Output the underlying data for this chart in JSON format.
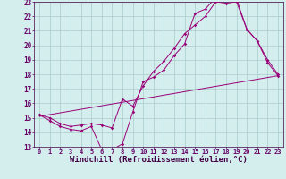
{
  "bg_color": "#d4eeee",
  "line_color": "#990077",
  "grid_color": "#aacccc",
  "xlabel": "Windchill (Refroidissement éolien,°C)",
  "xlabel_fontsize": 6.5,
  "tick_fontsize": 5.5,
  "xlim": [
    -0.5,
    23.5
  ],
  "ylim": [
    13,
    23
  ],
  "yticks": [
    13,
    14,
    15,
    16,
    17,
    18,
    19,
    20,
    21,
    22,
    23
  ],
  "xticks": [
    0,
    1,
    2,
    3,
    4,
    5,
    6,
    7,
    8,
    9,
    10,
    11,
    12,
    13,
    14,
    15,
    16,
    17,
    18,
    19,
    20,
    21,
    22,
    23
  ],
  "line1_x": [
    0,
    1,
    2,
    3,
    4,
    5,
    6,
    7,
    8,
    9,
    10,
    11,
    12,
    13,
    14,
    15,
    16,
    17,
    18,
    19,
    20,
    21,
    22,
    23
  ],
  "line1_y": [
    15.2,
    14.8,
    14.4,
    14.2,
    14.1,
    14.4,
    12.8,
    12.8,
    13.2,
    15.4,
    17.5,
    17.8,
    18.3,
    19.3,
    20.1,
    22.2,
    22.5,
    23.3,
    23.2,
    23.2,
    21.1,
    20.3,
    18.8,
    17.9
  ],
  "line2_x": [
    0,
    1,
    2,
    3,
    4,
    5,
    6,
    7,
    8,
    9,
    10,
    11,
    12,
    13,
    14,
    15,
    16,
    17,
    18,
    19,
    20,
    21,
    22,
    23
  ],
  "line2_y": [
    15.2,
    15.0,
    14.6,
    14.4,
    14.5,
    14.6,
    14.5,
    14.3,
    16.3,
    15.8,
    17.2,
    18.2,
    18.9,
    19.8,
    20.8,
    21.4,
    22.0,
    23.0,
    22.9,
    23.0,
    21.1,
    20.3,
    19.0,
    18.0
  ],
  "line3_x": [
    0,
    23
  ],
  "line3_y": [
    15.1,
    17.9
  ]
}
